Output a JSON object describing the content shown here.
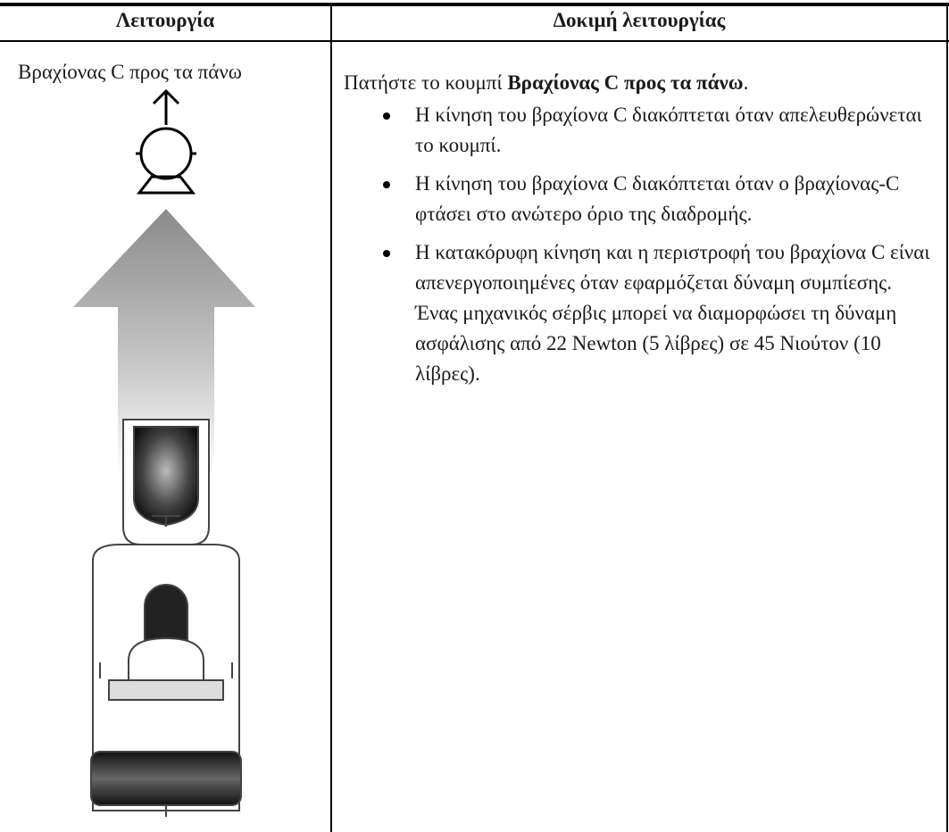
{
  "table": {
    "headers": [
      "Λειτουργία",
      "Δοκιμή λειτουργίας"
    ],
    "rows": [
      {
        "function": "Βραχίονας C προς τα πάνω",
        "instruction": {
          "text": "Πατήστε το κουμπί ",
          "bold": "Βραχίονας C προς τα πάνω",
          "end": "."
        },
        "bullets": [
          "Η κίνηση του βραχίονα C διακόπτεται όταν απελευθερώνεται το κουμπί.",
          "Η κίνηση του βραχίονα C διακόπτεται όταν ο βραχίονας-C φτάσει στο ανώτερο όριο της διαδρομής.",
          "Η κατακόρυφη κίνηση και η περιστροφή του βραχίονα C είναι απενεργοποιημένες όταν εφαρμόζεται δύναμη συμπίεσης. Ένας μηχανικός σέρβις μπορεί να διαμορφώσει τη δύναμη ασφάλισης από 22 Newton (5 λίβρες) σε 45 Νιούτον (10 λίβρες)."
        ]
      }
    ]
  }
}
